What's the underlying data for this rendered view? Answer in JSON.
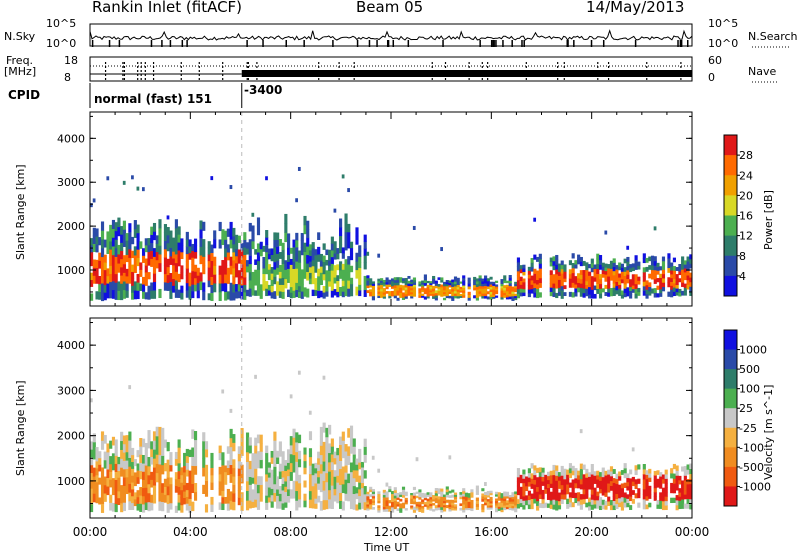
{
  "header": {
    "station": "Rankin Inlet (fitACF)",
    "beam": "Beam 05",
    "date": "14/May/2013"
  },
  "top_panels": {
    "nsky_label": "N.Sky",
    "nsearch_label": "N.Search",
    "nsky_ticks": [
      "10^5",
      "10^0"
    ],
    "nsearch_ticks": [
      "10^5",
      "10^0"
    ],
    "freq_label_1": "Freq.",
    "freq_label_2": "[MHz]",
    "freq_ticks": [
      "18",
      "8"
    ],
    "nave_label": "Nave",
    "nave_ticks": [
      "60",
      "0"
    ],
    "cpid_label": "CPID",
    "cpid_segments": [
      {
        "label": "normal (fast) 151",
        "start_hour": 0,
        "end_hour": 6
      },
      {
        "label": "-3400",
        "start_hour": 6,
        "end_hour": 24
      }
    ]
  },
  "chart_data": [
    {
      "type": "heatmap",
      "title": "",
      "quantity": "Power",
      "ylabel": "Slant Range [km]",
      "colorbar_label": "Power [dB]",
      "colorbar_ticks": [
        "4",
        "8",
        "12",
        "16",
        "20",
        "24",
        "28"
      ],
      "colorbar_colors": [
        "#1010e0",
        "#2a4aa8",
        "#2e7d6a",
        "#4caf50",
        "#d8d826",
        "#f0a000",
        "#ff6a00",
        "#e01818"
      ],
      "ylim": [
        180,
        4600
      ],
      "yticks": [
        1000,
        2000,
        3000,
        4000
      ],
      "xlim_hours": [
        0,
        24
      ],
      "grid": false,
      "bands": [
        {
          "start": 0,
          "end": 6.2,
          "range_lo": 300,
          "range_hi": 2200,
          "core_lo": 700,
          "core_hi": 1400,
          "level": 6
        },
        {
          "start": 6.2,
          "end": 11,
          "range_lo": 350,
          "range_hi": 2300,
          "core_lo": 500,
          "core_hi": 1100,
          "level": 3
        },
        {
          "start": 11,
          "end": 17,
          "range_lo": 300,
          "range_hi": 900,
          "core_lo": 400,
          "core_hi": 650,
          "level": 5
        },
        {
          "start": 17,
          "end": 24,
          "range_lo": 350,
          "range_hi": 1400,
          "core_lo": 600,
          "core_hi": 1000,
          "level": 6
        }
      ]
    },
    {
      "type": "heatmap",
      "title": "",
      "quantity": "Velocity",
      "ylabel": "Slant Range [km]",
      "xlabel": "Time UT",
      "colorbar_label": "Velocity [m s^-1]",
      "colorbar_ticks": [
        "-1000",
        "-500",
        "-100",
        "-25",
        "25",
        "100",
        "500",
        "1000"
      ],
      "colorbar_colors": [
        "#e01818",
        "#f05a10",
        "#f08c20",
        "#f5b040",
        "#c8c8c8",
        "#4caf50",
        "#2e7d6a",
        "#2a4aa8",
        "#1010e0"
      ],
      "ylim": [
        180,
        4600
      ],
      "yticks": [
        1000,
        2000,
        3000,
        4000
      ],
      "xlim_hours": [
        0,
        24
      ],
      "xticks": [
        "00:00",
        "04:00",
        "08:00",
        "12:00",
        "16:00",
        "20:00",
        "00:00"
      ],
      "grid": false,
      "bands": [
        {
          "start": 0,
          "end": 6.2,
          "range_lo": 300,
          "range_hi": 2200,
          "core_lo": 500,
          "core_hi": 1300,
          "level": 2
        },
        {
          "start": 6.2,
          "end": 11,
          "range_lo": 350,
          "range_hi": 2300,
          "core_lo": 500,
          "core_hi": 1000,
          "level": 4
        },
        {
          "start": 11,
          "end": 17,
          "range_lo": 300,
          "range_hi": 900,
          "core_lo": 400,
          "core_hi": 650,
          "level": 2
        },
        {
          "start": 17,
          "end": 24,
          "range_lo": 350,
          "range_hi": 1400,
          "core_lo": 600,
          "core_hi": 1100,
          "level": 0
        }
      ]
    }
  ]
}
